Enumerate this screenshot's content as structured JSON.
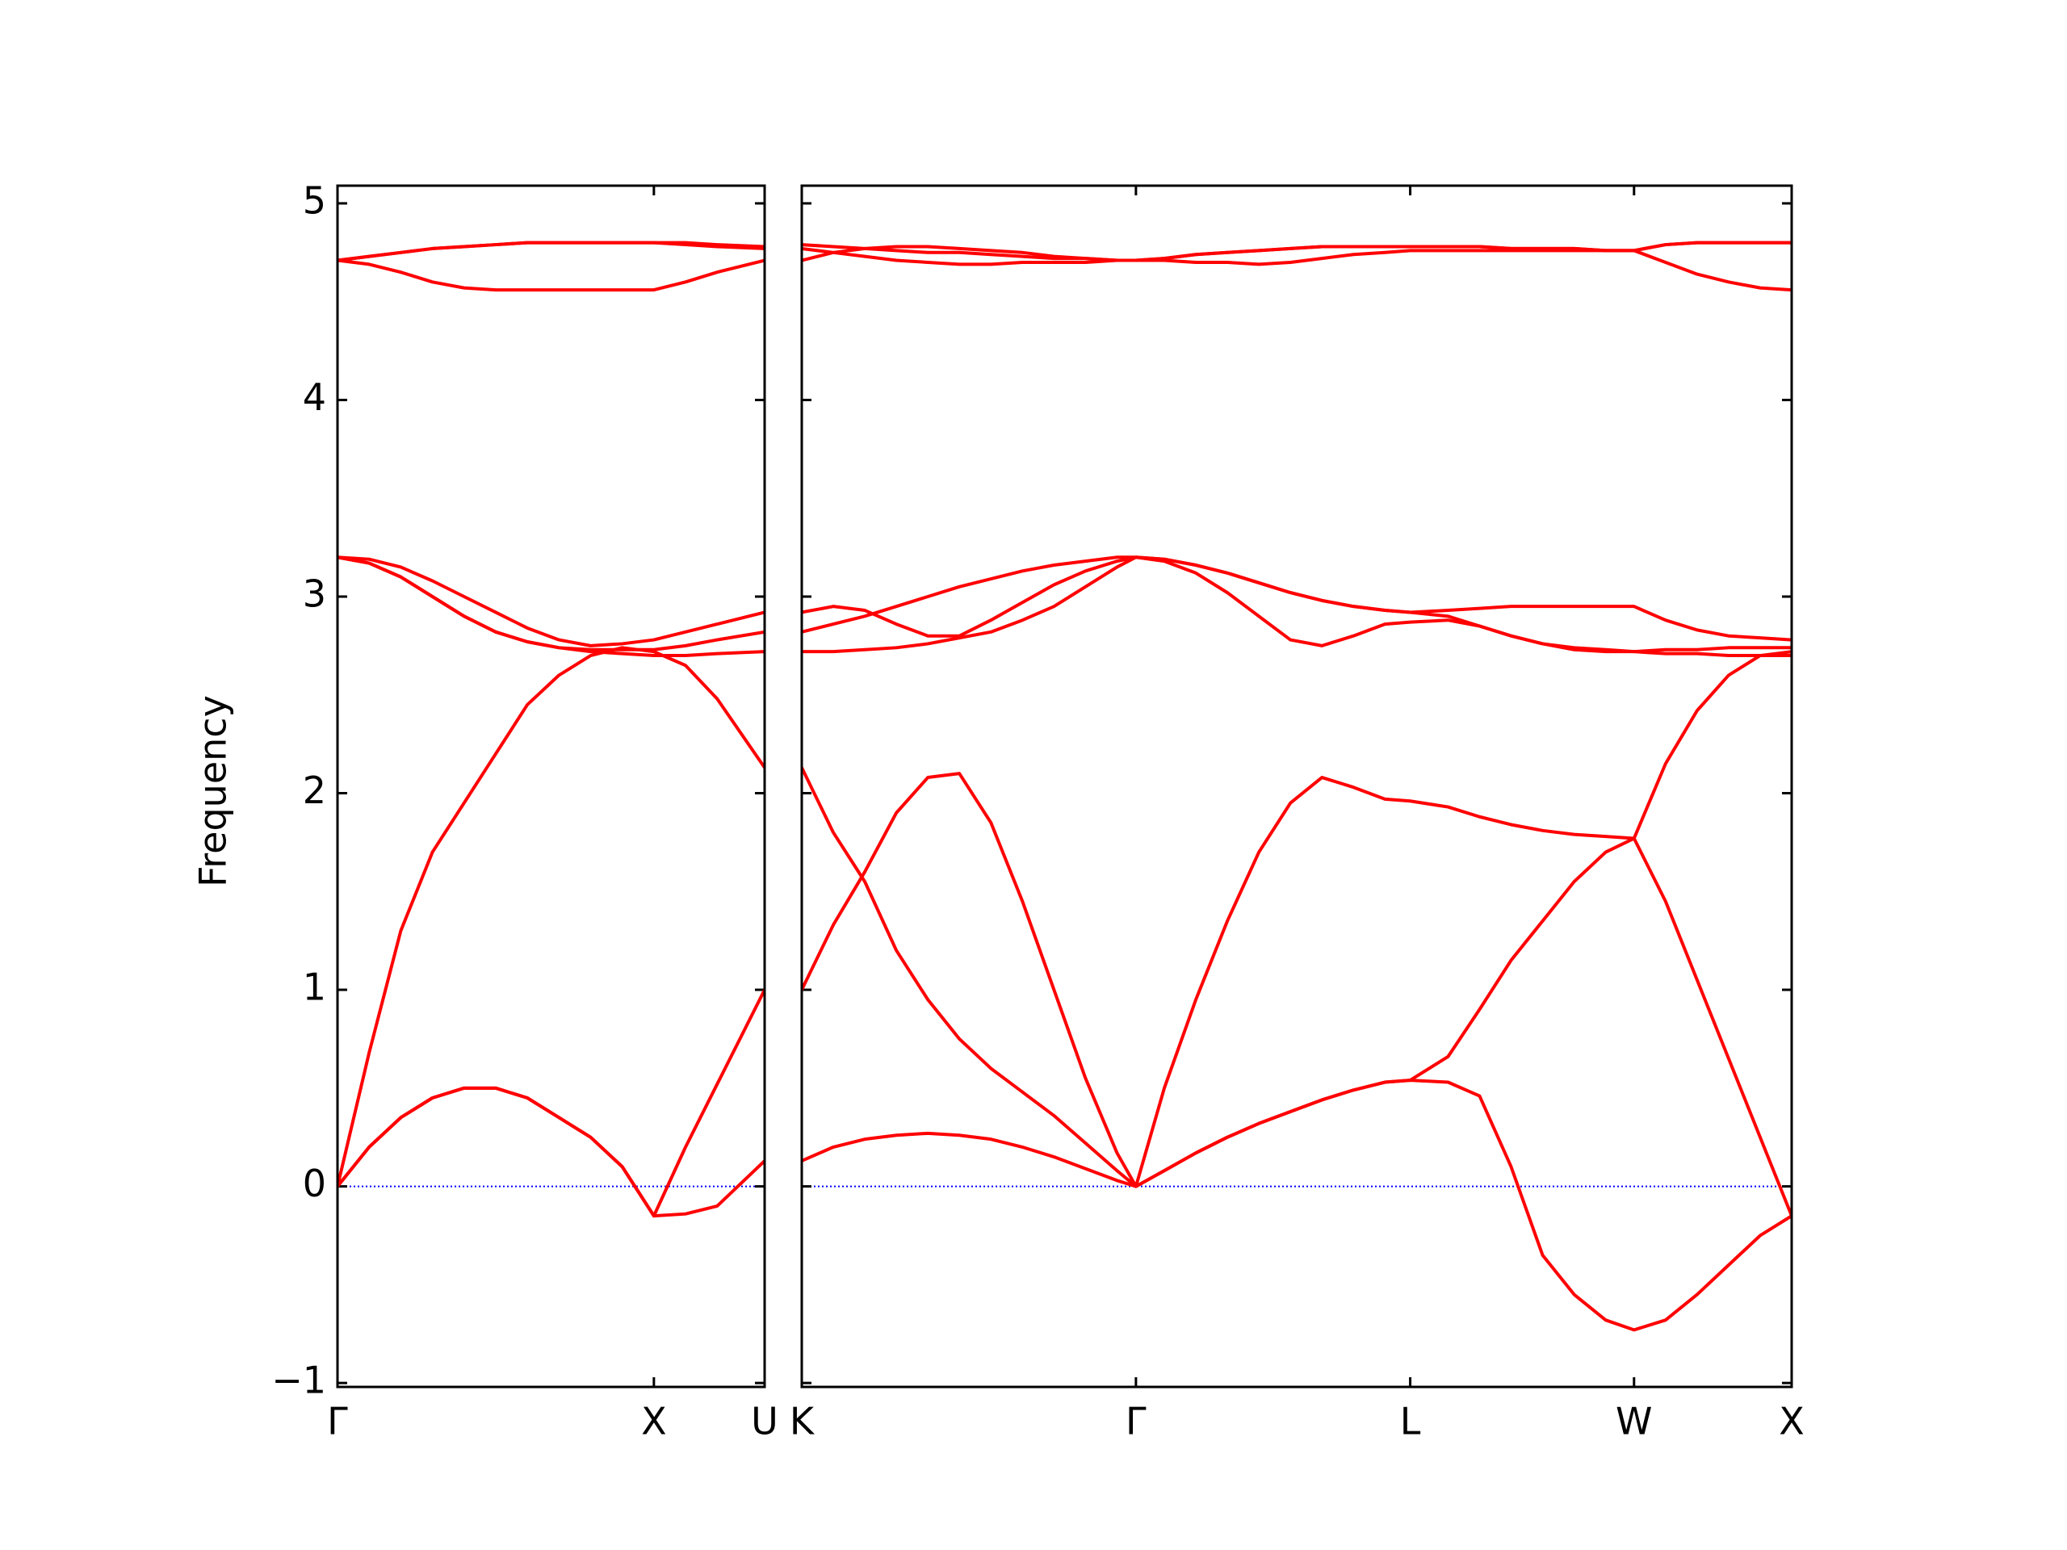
{
  "chart_data": [
    {
      "type": "line",
      "ylabel": "Frequency",
      "color": "#ff0000",
      "hline": {
        "value": 0,
        "color": "#0000ff"
      },
      "xlim": [
        0,
        1.35
      ],
      "ylim": [
        -1.02,
        5.09
      ],
      "xticks": [
        {
          "value": 0,
          "label": "Γ"
        },
        {
          "value": 1,
          "label": "X"
        },
        {
          "value": 1.35,
          "label": "U"
        }
      ],
      "yticks": [
        {
          "value": -1,
          "label": "−1"
        },
        0,
        1,
        2,
        3,
        4,
        5
      ],
      "x": [
        0,
        0.1,
        0.2,
        0.3,
        0.4,
        0.5,
        0.6,
        0.7,
        0.8,
        0.9,
        1.0,
        1.1,
        1.2,
        1.35
      ],
      "series": [
        {
          "values": [
            0,
            0.2,
            0.35,
            0.45,
            0.5,
            0.5,
            0.45,
            0.35,
            0.25,
            0.1,
            -0.15,
            -0.14,
            -0.1,
            0.13
          ]
        },
        {
          "values": [
            0,
            0.2,
            0.35,
            0.45,
            0.5,
            0.5,
            0.45,
            0.35,
            0.25,
            0.1,
            -0.15,
            0.2,
            0.52,
            1.0
          ]
        },
        {
          "values": [
            0,
            0.68,
            1.3,
            1.7,
            1.95,
            2.2,
            2.45,
            2.6,
            2.7,
            2.74,
            2.72,
            2.65,
            2.48,
            2.13
          ]
        },
        {
          "values": [
            3.2,
            3.17,
            3.1,
            3.0,
            2.9,
            2.82,
            2.77,
            2.74,
            2.72,
            2.71,
            2.7,
            2.7,
            2.71,
            2.72
          ]
        },
        {
          "values": [
            3.2,
            3.17,
            3.1,
            3.0,
            2.9,
            2.82,
            2.77,
            2.74,
            2.73,
            2.73,
            2.73,
            2.75,
            2.78,
            2.82
          ]
        },
        {
          "values": [
            3.2,
            3.19,
            3.15,
            3.08,
            3.0,
            2.92,
            2.84,
            2.78,
            2.75,
            2.76,
            2.78,
            2.82,
            2.86,
            2.92
          ]
        },
        {
          "values": [
            4.71,
            4.69,
            4.65,
            4.6,
            4.57,
            4.56,
            4.56,
            4.56,
            4.56,
            4.56,
            4.56,
            4.6,
            4.65,
            4.71
          ]
        },
        {
          "values": [
            4.71,
            4.73,
            4.75,
            4.77,
            4.78,
            4.79,
            4.8,
            4.8,
            4.8,
            4.8,
            4.8,
            4.8,
            4.79,
            4.78
          ]
        },
        {
          "values": [
            4.71,
            4.73,
            4.75,
            4.77,
            4.78,
            4.79,
            4.8,
            4.8,
            4.8,
            4.8,
            4.8,
            4.79,
            4.78,
            4.77
          ]
        }
      ]
    },
    {
      "type": "line",
      "color": "#ff0000",
      "hline": {
        "value": 0,
        "color": "#0000ff"
      },
      "xlim": [
        0,
        3.14
      ],
      "ylim": [
        -1.02,
        5.09
      ],
      "xticks": [
        {
          "value": 0,
          "label": "K"
        },
        {
          "value": 1.06,
          "label": "Γ"
        },
        {
          "value": 1.93,
          "label": "L"
        },
        {
          "value": 2.64,
          "label": "W"
        },
        {
          "value": 3.14,
          "label": "X"
        }
      ],
      "x": [
        0,
        0.1,
        0.2,
        0.3,
        0.4,
        0.5,
        0.6,
        0.7,
        0.8,
        0.9,
        1.0,
        1.06,
        1.15,
        1.25,
        1.35,
        1.45,
        1.55,
        1.65,
        1.75,
        1.85,
        1.93,
        2.05,
        2.15,
        2.25,
        2.35,
        2.45,
        2.55,
        2.64,
        2.74,
        2.84,
        2.94,
        3.04,
        3.14
      ],
      "series": [
        {
          "values": [
            0.13,
            0.2,
            0.24,
            0.26,
            0.27,
            0.26,
            0.24,
            0.2,
            0.15,
            0.09,
            0.03,
            0,
            0.08,
            0.17,
            0.25,
            0.32,
            0.38,
            0.44,
            0.49,
            0.53,
            0.54,
            0.53,
            0.46,
            0.1,
            -0.35,
            -0.55,
            -0.68,
            -0.73,
            -0.68,
            -0.55,
            -0.4,
            -0.25,
            -0.15
          ]
        },
        {
          "values": [
            2.13,
            1.8,
            1.55,
            1.2,
            0.95,
            0.75,
            0.6,
            0.48,
            0.36,
            0.22,
            0.08,
            0,
            0.08,
            0.17,
            0.25,
            0.32,
            0.38,
            0.44,
            0.49,
            0.53,
            0.54,
            0.66,
            0.9,
            1.15,
            1.35,
            1.55,
            1.7,
            1.77,
            1.45,
            1.05,
            0.65,
            0.25,
            -0.15
          ]
        },
        {
          "values": [
            1.0,
            1.33,
            1.6,
            1.9,
            2.08,
            2.1,
            1.85,
            1.45,
            1.0,
            0.55,
            0.17,
            0,
            0.5,
            0.95,
            1.35,
            1.7,
            1.95,
            2.08,
            2.03,
            1.97,
            1.96,
            1.93,
            1.88,
            1.84,
            1.81,
            1.79,
            1.78,
            1.77,
            2.15,
            2.42,
            2.6,
            2.7,
            2.72
          ]
        },
        {
          "values": [
            2.72,
            2.72,
            2.73,
            2.74,
            2.76,
            2.79,
            2.82,
            2.88,
            2.95,
            3.05,
            3.15,
            3.2,
            3.18,
            3.12,
            3.02,
            2.9,
            2.78,
            2.75,
            2.8,
            2.86,
            2.87,
            2.88,
            2.85,
            2.8,
            2.76,
            2.73,
            2.72,
            2.72,
            2.71,
            2.71,
            2.7,
            2.7,
            2.7
          ]
        },
        {
          "values": [
            2.92,
            2.95,
            2.93,
            2.86,
            2.8,
            2.8,
            2.88,
            2.97,
            3.06,
            3.13,
            3.18,
            3.2,
            3.19,
            3.16,
            3.12,
            3.07,
            3.02,
            2.98,
            2.95,
            2.93,
            2.92,
            2.93,
            2.94,
            2.95,
            2.95,
            2.95,
            2.95,
            2.95,
            2.88,
            2.83,
            2.8,
            2.79,
            2.78
          ]
        },
        {
          "values": [
            2.82,
            2.86,
            2.9,
            2.95,
            3.0,
            3.05,
            3.09,
            3.13,
            3.16,
            3.18,
            3.2,
            3.2,
            3.19,
            3.16,
            3.12,
            3.07,
            3.02,
            2.98,
            2.95,
            2.93,
            2.92,
            2.9,
            2.85,
            2.8,
            2.76,
            2.74,
            2.73,
            2.72,
            2.73,
            2.73,
            2.74,
            2.74,
            2.74
          ]
        },
        {
          "values": [
            4.79,
            4.78,
            4.77,
            4.76,
            4.75,
            4.75,
            4.74,
            4.73,
            4.72,
            4.72,
            4.71,
            4.71,
            4.71,
            4.7,
            4.7,
            4.69,
            4.7,
            4.72,
            4.74,
            4.75,
            4.76,
            4.76,
            4.76,
            4.76,
            4.76,
            4.76,
            4.76,
            4.76,
            4.7,
            4.64,
            4.6,
            4.57,
            4.56
          ]
        },
        {
          "values": [
            4.77,
            4.75,
            4.73,
            4.71,
            4.7,
            4.69,
            4.69,
            4.7,
            4.7,
            4.7,
            4.71,
            4.71,
            4.72,
            4.74,
            4.75,
            4.76,
            4.77,
            4.78,
            4.78,
            4.78,
            4.78,
            4.78,
            4.78,
            4.77,
            4.77,
            4.77,
            4.76,
            4.76,
            4.79,
            4.8,
            4.8,
            4.8,
            4.8
          ]
        },
        {
          "values": [
            4.71,
            4.75,
            4.77,
            4.78,
            4.78,
            4.77,
            4.76,
            4.75,
            4.73,
            4.72,
            4.71,
            4.71,
            4.72,
            4.74,
            4.75,
            4.76,
            4.77,
            4.78,
            4.78,
            4.78,
            4.78,
            4.78,
            4.78,
            4.77,
            4.77,
            4.77,
            4.76,
            4.76,
            4.79,
            4.8,
            4.8,
            4.8,
            4.8
          ]
        }
      ]
    }
  ]
}
